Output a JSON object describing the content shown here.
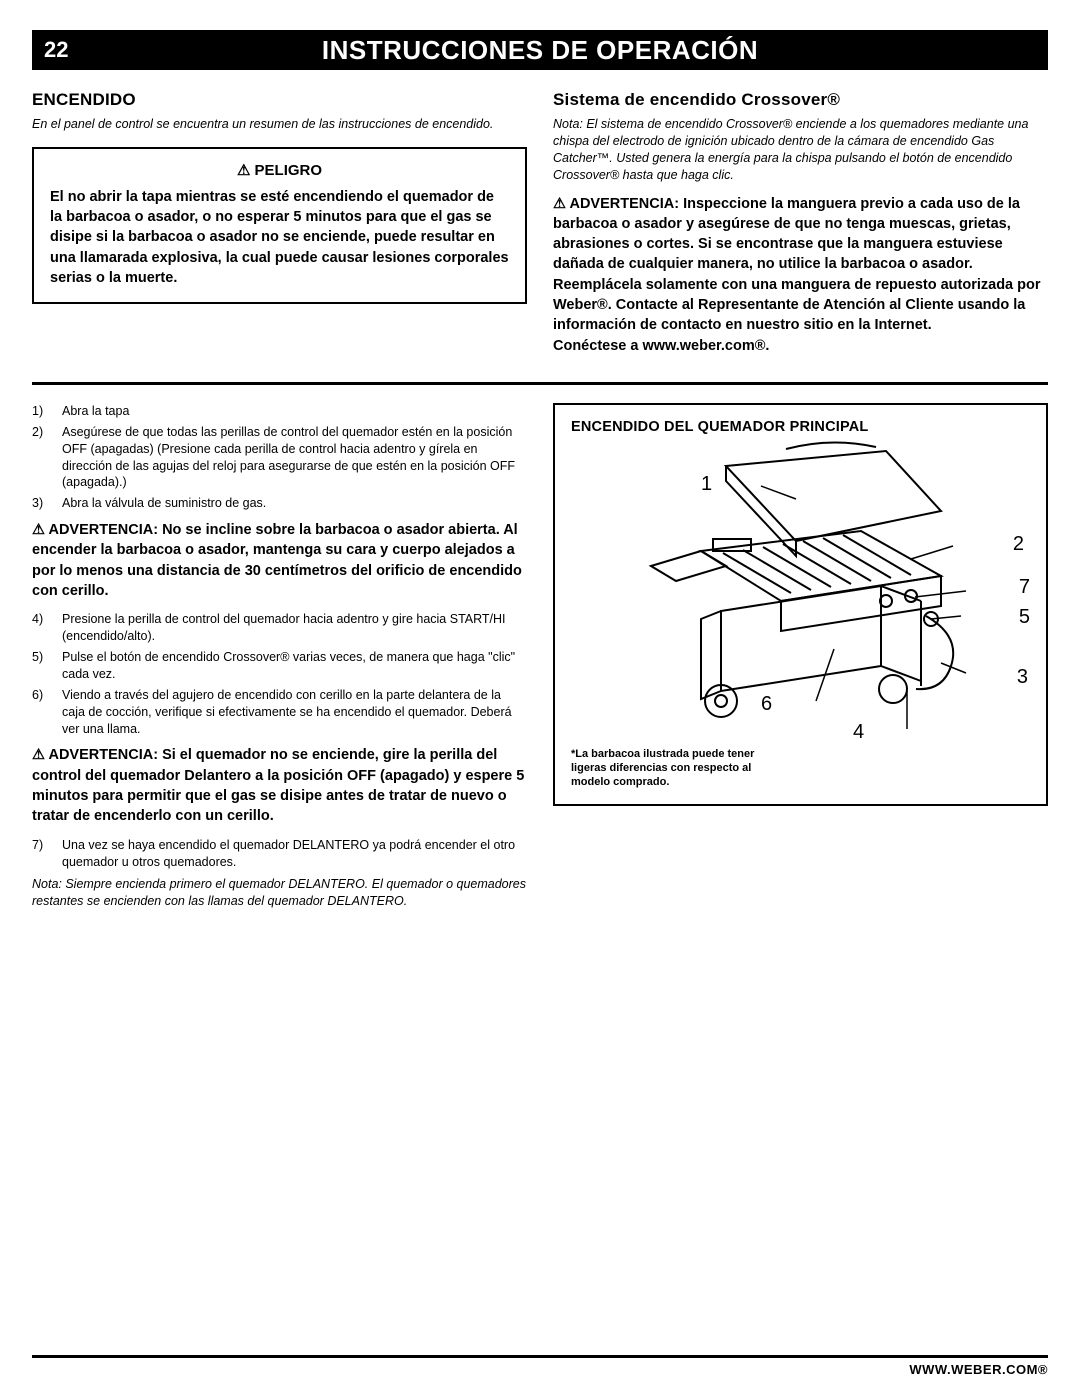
{
  "header": {
    "page_number": "22",
    "title": "INSTRUCCIONES DE OPERACIÓN"
  },
  "left_top": {
    "heading": "ENCENDIDO",
    "note": "En el panel de control se encuentra un resumen de las instrucciones de encendido.",
    "danger_head": "⚠ PELIGRO",
    "danger_body": "El no abrir la tapa mientras se esté encendiendo el quemador de la barbacoa o asador, o no esperar 5 minutos para que el gas se disipe si la barbacoa o asador no se enciende, puede resultar en una llamarada explosiva, la cual puede causar lesiones corporales serias o la muerte."
  },
  "right_top": {
    "heading": "Sistema de encendido Crossover®",
    "note": "Nota: El sistema de encendido Crossover® enciende a los quemadores mediante una chispa del electrodo de ignición ubicado dentro de la cámara de encendido Gas Catcher™. Usted genera la energía para la chispa pulsando el botón de encendido Crossover® hasta que haga clic.",
    "advert": "⚠ ADVERTENCIA: Inspeccione la manguera previo a cada uso de la barbacoa o asador y asegúrese de que no tenga muescas, grietas, abrasiones o cortes. Si se encontrase que la manguera estuviese dañada de cualquier manera, no utilice la barbacoa o asador. Reemplácela solamente con una manguera de repuesto autorizada por Weber®. Contacte al Representante de Atención al Cliente usando la información de contacto en nuestro sitio en la Internet.",
    "connect": "Conéctese a www.weber.com®."
  },
  "steps_a": [
    {
      "n": "1)",
      "t": "Abra la tapa"
    },
    {
      "n": "2)",
      "t": "Asegúrese de que todas las perillas de control del quemador estén en la posición OFF (apagadas) (Presione cada perilla de control hacia adentro y gírela en dirección de las agujas del reloj para asegurarse de que estén en la posición OFF (apagada).)"
    },
    {
      "n": "3)",
      "t": "Abra la válvula de suministro de gas."
    }
  ],
  "warn1": "⚠ ADVERTENCIA: No se incline sobre la barbacoa o asador abierta. Al encender la barbacoa o asador, mantenga su cara y cuerpo alejados a por lo menos una distancia de 30 centímetros del orificio de encendido con cerillo.",
  "steps_b": [
    {
      "n": "4)",
      "t": "Presione la perilla de control del quemador hacia adentro y gire hacia START/HI (encendido/alto)."
    },
    {
      "n": "5)",
      "t": "Pulse el botón de encendido Crossover® varias veces, de manera que haga \"clic\" cada vez."
    },
    {
      "n": "6)",
      "t": "Viendo a través del agujero de encendido con cerillo en la parte delantera de la caja de cocción, verifique si efectivamente se ha encendido el quemador. Deberá ver una llama."
    }
  ],
  "warn2": "⚠ ADVERTENCIA: Si el quemador no se enciende, gire la perilla del control del quemador Delantero a la posición OFF (apagado) y espere 5 minutos para permitir que el gas se disipe antes de tratar de nuevo o tratar de encenderlo con un cerillo.",
  "steps_c": [
    {
      "n": "7)",
      "t": "Una vez se haya encendido el quemador DELANTERO ya podrá encender el otro quemador u otros quemadores."
    }
  ],
  "end_note": "Nota: Siempre encienda primero el quemador DELANTERO. El quemador o quemadores restantes se encienden con las llamas del quemador DELANTERO.",
  "diagram": {
    "title": "ENCENDIDO DEL QUEMADOR PRINCIPAL",
    "note": "*La barbacoa ilustrada puede tener ligeras diferencias con respecto al modelo comprado.",
    "callouts": [
      "1",
      "2",
      "3",
      "4",
      "5",
      "6",
      "7"
    ]
  },
  "footer": "WWW.WEBER.COM®"
}
